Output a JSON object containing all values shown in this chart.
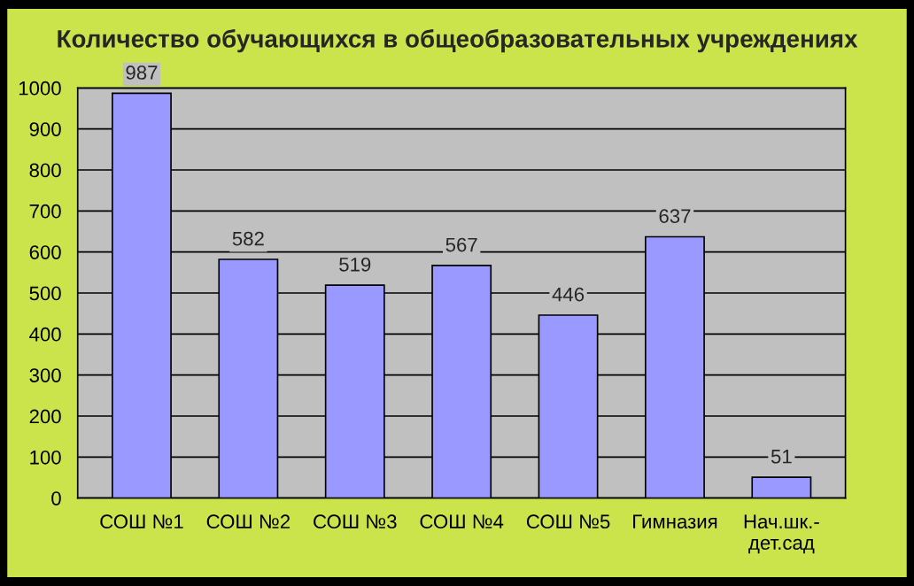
{
  "chart_data": {
    "type": "bar",
    "title": "Количество обучающихся в общеобразовательных учреждениях",
    "categories": [
      "СОШ №1",
      "СОШ №2",
      "СОШ №3",
      "СОШ №4",
      "СОШ №5",
      "Гимназия",
      "Нач.шк.-\nдет.сад"
    ],
    "values": [
      987,
      582,
      519,
      567,
      446,
      637,
      51
    ],
    "color": "#9999ff",
    "ylim": [
      0,
      1000
    ],
    "yticks": [
      0,
      100,
      200,
      300,
      400,
      500,
      600,
      700,
      800,
      900,
      1000
    ],
    "grid": "y",
    "data_labels": true,
    "legend": false
  }
}
